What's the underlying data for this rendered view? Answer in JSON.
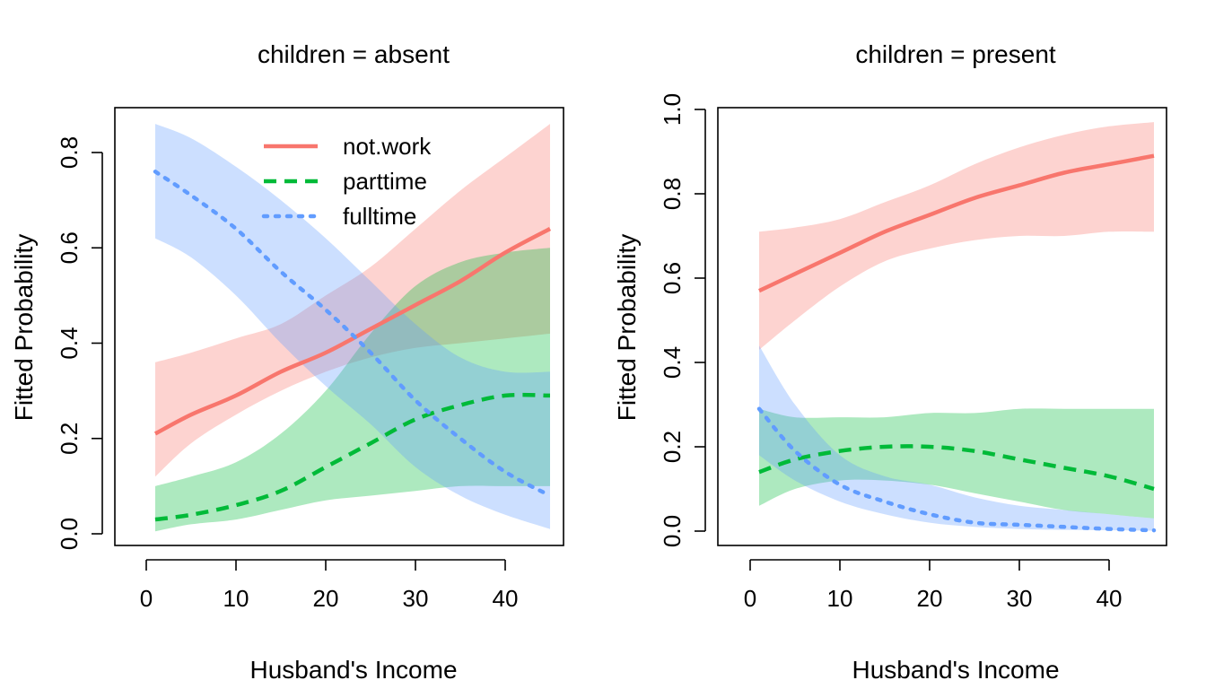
{
  "colors": {
    "not.work": "#F8766D",
    "parttime": "#00BA38",
    "fulltime": "#619CFF"
  },
  "legend": [
    "not.work",
    "parttime",
    "fulltime"
  ],
  "chart_data": [
    {
      "type": "line",
      "title": "children = absent",
      "xlabel": "Husband's Income",
      "ylabel": "Fitted Probability",
      "xlim": [
        0,
        45
      ],
      "ylim": [
        0.0,
        0.87
      ],
      "xticks": [
        "0",
        "10",
        "20",
        "30",
        "40"
      ],
      "yticks": [
        "0.0",
        "0.2",
        "0.4",
        "0.6",
        "0.8"
      ],
      "legend_position": "top",
      "x": [
        1,
        5,
        10,
        15,
        20,
        25,
        30,
        35,
        40,
        45
      ],
      "series": [
        {
          "name": "not.work",
          "line": "solid",
          "values": [
            0.21,
            0.25,
            0.29,
            0.34,
            0.38,
            0.43,
            0.48,
            0.53,
            0.59,
            0.64
          ],
          "lower": [
            0.12,
            0.19,
            0.25,
            0.3,
            0.34,
            0.37,
            0.39,
            0.4,
            0.41,
            0.42
          ],
          "upper": [
            0.36,
            0.38,
            0.41,
            0.44,
            0.5,
            0.56,
            0.64,
            0.72,
            0.79,
            0.86
          ]
        },
        {
          "name": "parttime",
          "line": "dashed",
          "values": [
            0.03,
            0.04,
            0.06,
            0.09,
            0.14,
            0.19,
            0.24,
            0.27,
            0.29,
            0.29
          ],
          "lower": [
            0.005,
            0.02,
            0.03,
            0.05,
            0.07,
            0.08,
            0.09,
            0.1,
            0.1,
            0.1
          ],
          "upper": [
            0.1,
            0.12,
            0.15,
            0.21,
            0.3,
            0.42,
            0.52,
            0.57,
            0.59,
            0.6
          ]
        },
        {
          "name": "fulltime",
          "line": "dotted",
          "values": [
            0.76,
            0.71,
            0.64,
            0.55,
            0.47,
            0.38,
            0.28,
            0.2,
            0.13,
            0.08
          ],
          "lower": [
            0.62,
            0.58,
            0.5,
            0.4,
            0.31,
            0.23,
            0.14,
            0.08,
            0.04,
            0.01
          ],
          "upper": [
            0.86,
            0.83,
            0.77,
            0.7,
            0.62,
            0.53,
            0.44,
            0.37,
            0.34,
            0.34
          ]
        }
      ]
    },
    {
      "type": "line",
      "title": "children = present",
      "xlabel": "Husband's Income",
      "ylabel": "Fitted Probability",
      "xlim": [
        0,
        45
      ],
      "ylim": [
        0.0,
        1.0
      ],
      "xticks": [
        "0",
        "10",
        "20",
        "30",
        "40"
      ],
      "yticks": [
        "0.0",
        "0.2",
        "0.4",
        "0.6",
        "0.8",
        "1.0"
      ],
      "x": [
        1,
        5,
        10,
        15,
        20,
        25,
        30,
        35,
        40,
        45
      ],
      "series": [
        {
          "name": "not.work",
          "line": "solid",
          "values": [
            0.57,
            0.61,
            0.66,
            0.71,
            0.75,
            0.79,
            0.82,
            0.85,
            0.87,
            0.89
          ],
          "lower": [
            0.43,
            0.5,
            0.58,
            0.64,
            0.67,
            0.69,
            0.7,
            0.7,
            0.71,
            0.71
          ],
          "upper": [
            0.71,
            0.72,
            0.74,
            0.78,
            0.82,
            0.87,
            0.91,
            0.94,
            0.96,
            0.97
          ]
        },
        {
          "name": "parttime",
          "line": "dashed",
          "values": [
            0.14,
            0.17,
            0.19,
            0.2,
            0.2,
            0.19,
            0.17,
            0.15,
            0.13,
            0.1
          ],
          "lower": [
            0.06,
            0.1,
            0.12,
            0.12,
            0.11,
            0.09,
            0.07,
            0.05,
            0.04,
            0.03
          ],
          "upper": [
            0.29,
            0.27,
            0.27,
            0.27,
            0.28,
            0.28,
            0.29,
            0.29,
            0.29,
            0.29
          ]
        },
        {
          "name": "fulltime",
          "line": "dotted",
          "values": [
            0.29,
            0.19,
            0.11,
            0.07,
            0.04,
            0.02,
            0.015,
            0.01,
            0.005,
            0.002
          ],
          "lower": [
            0.18,
            0.12,
            0.07,
            0.04,
            0.02,
            0.01,
            0.005,
            0.003,
            0.002,
            0.001
          ],
          "upper": [
            0.44,
            0.3,
            0.18,
            0.13,
            0.11,
            0.08,
            0.06,
            0.05,
            0.04,
            0.03
          ]
        }
      ]
    }
  ]
}
